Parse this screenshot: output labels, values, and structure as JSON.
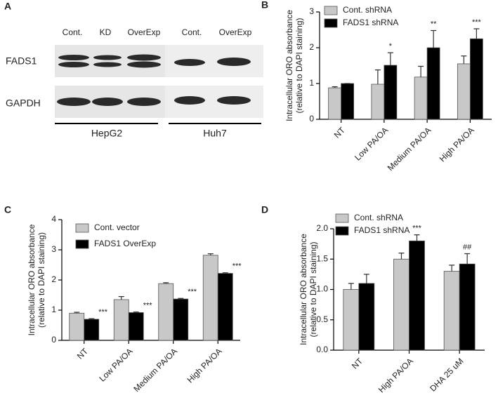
{
  "panel_a": {
    "label": "A",
    "lanes": [
      "Cont.",
      "KD",
      "OverExp",
      "Cont.",
      "OverExp"
    ],
    "proteins": [
      "FADS1",
      "GAPDH"
    ],
    "cell_lines": [
      "HepG2",
      "Huh7"
    ]
  },
  "chart_data": [
    {
      "type": "bar",
      "label": "B",
      "ylabel": [
        "Intracellular ORO absorbance",
        "(relative to DAPI staining)"
      ],
      "categories": [
        "NT",
        "Low PA/OA",
        "Medium PA/OA",
        "High PA/OA"
      ],
      "series": [
        {
          "name": "Cont. shRNA",
          "color": "#c8c8c8",
          "values": [
            0.88,
            0.98,
            1.18,
            1.55
          ],
          "errors": [
            0.03,
            0.4,
            0.3,
            0.22
          ],
          "annotations": [
            null,
            null,
            null,
            null
          ]
        },
        {
          "name": "FADS1 shRNA",
          "color": "#000000",
          "values": [
            1.0,
            1.51,
            2.0,
            2.25
          ],
          "errors": [
            0,
            0.35,
            0.48,
            0.28
          ],
          "annotations": [
            null,
            "*",
            "**",
            "***"
          ]
        }
      ],
      "ylim": [
        0,
        3
      ],
      "yticks": [
        0,
        1,
        2,
        3
      ]
    },
    {
      "type": "bar",
      "label": "C",
      "ylabel": [
        "Intracellular ORO absorbance",
        "(relative to DAPI staining)"
      ],
      "categories": [
        "NT",
        "Low PA/OA",
        "Medium PA/OA",
        "High PA/OA"
      ],
      "series": [
        {
          "name": "Cont. vector",
          "color": "#c8c8c8",
          "values": [
            0.9,
            1.35,
            1.88,
            2.82
          ],
          "errors": [
            0.03,
            0.1,
            0.03,
            0.05
          ],
          "annotations": [
            null,
            null,
            null,
            null
          ]
        },
        {
          "name": "FADS1 OverExp",
          "color": "#000000",
          "values": [
            0.7,
            0.92,
            1.37,
            2.22
          ],
          "errors": [
            0.02,
            0.02,
            0.02,
            0.02
          ],
          "annotations": [
            "***",
            "***",
            "***",
            "***"
          ]
        }
      ],
      "ylim": [
        0,
        4
      ],
      "yticks": [
        0,
        1,
        2,
        3,
        4
      ]
    },
    {
      "type": "bar",
      "label": "D",
      "ylabel": [
        "Intracellular ORO absorbance",
        "(relative to DAPI staining)"
      ],
      "categories": [
        "NT",
        "High PA/OA",
        "DHA 25 uM"
      ],
      "series": [
        {
          "name": "Cont. shRNA",
          "color": "#c8c8c8",
          "values": [
            1.0,
            1.5,
            1.3
          ],
          "errors": [
            0.1,
            0.1,
            0.1
          ],
          "annotations": [
            null,
            null,
            null
          ]
        },
        {
          "name": "FADS1 shRNA",
          "color": "#000000",
          "values": [
            1.1,
            1.8,
            1.42
          ],
          "errors": [
            0.15,
            0.1,
            0.17
          ],
          "annotations": [
            null,
            "***",
            "##"
          ]
        }
      ],
      "ylim": [
        0,
        2
      ],
      "yticks": [
        {
          "value": 0,
          "label": "0.0"
        },
        0.5,
        {
          "value": 1,
          "label": "1.0"
        },
        1.5,
        {
          "value": 2,
          "label": "2.0"
        }
      ]
    }
  ]
}
